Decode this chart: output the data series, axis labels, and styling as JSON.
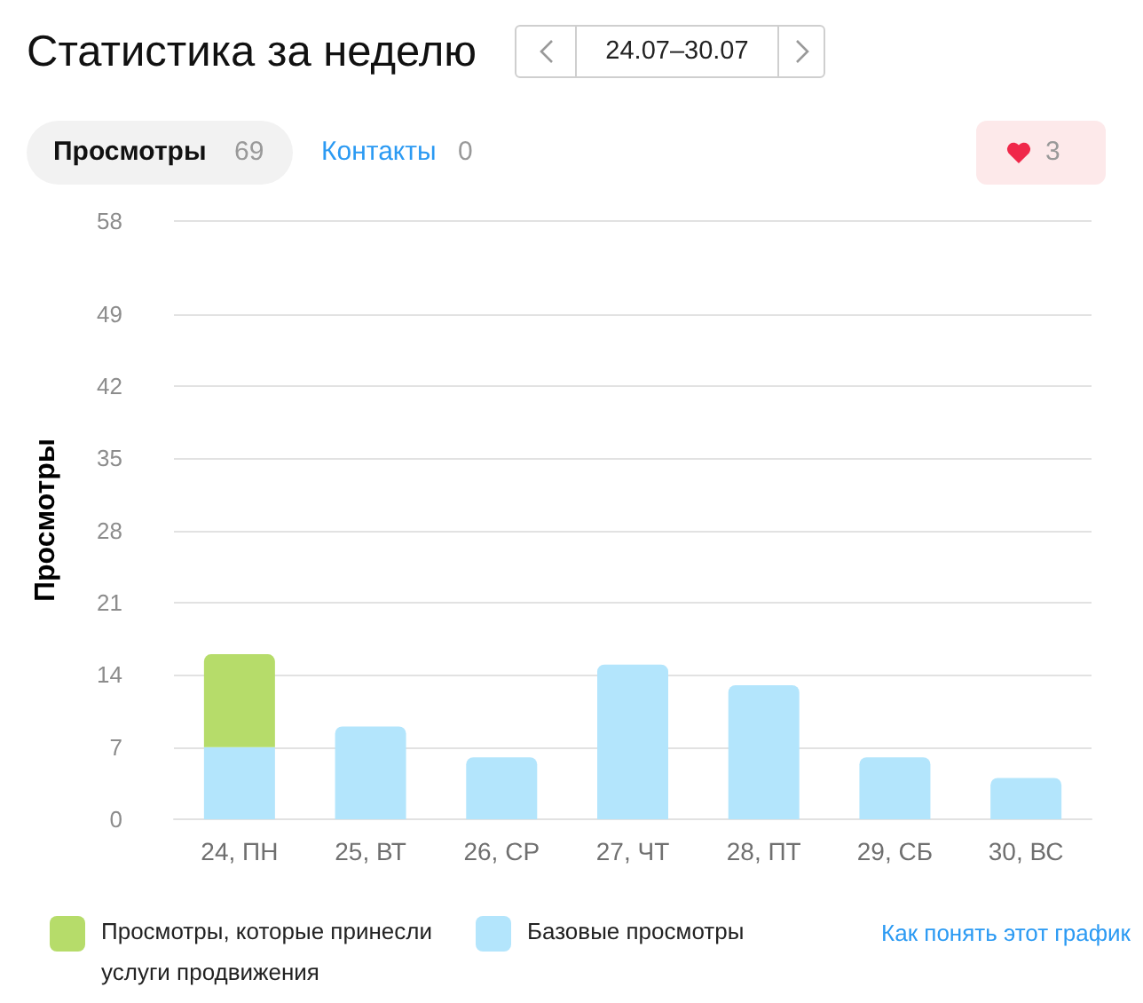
{
  "chart_data": {
    "type": "bar",
    "title": "Статистика за неделю",
    "subtitle": "24.07–30.07",
    "ylabel": "Просмотры",
    "categories": [
      "24, ПН",
      "25, ВТ",
      "26, СР",
      "27, ЧТ",
      "28, ПТ",
      "29, СБ",
      "30, ВС"
    ],
    "series": [
      {
        "name": "Базовые просмотры",
        "color": "#b3e5fc",
        "values": [
          7,
          9,
          6,
          15,
          13,
          6,
          4
        ]
      },
      {
        "name": "Просмотры, которые принесли услуги продвижения",
        "color": "#b6dc6a",
        "values": [
          9,
          null,
          null,
          null,
          null,
          null,
          null
        ]
      }
    ],
    "stacked": true,
    "ylim": [
      0,
      58
    ],
    "yticks": [
      0,
      7,
      14,
      21,
      28,
      35,
      42,
      49,
      58
    ],
    "grid": "y",
    "legend": "bottom",
    "annotations": [
      "Просмотры",
      "69",
      "Контакты",
      "0",
      "3",
      "Как понять этот график"
    ]
  }
}
